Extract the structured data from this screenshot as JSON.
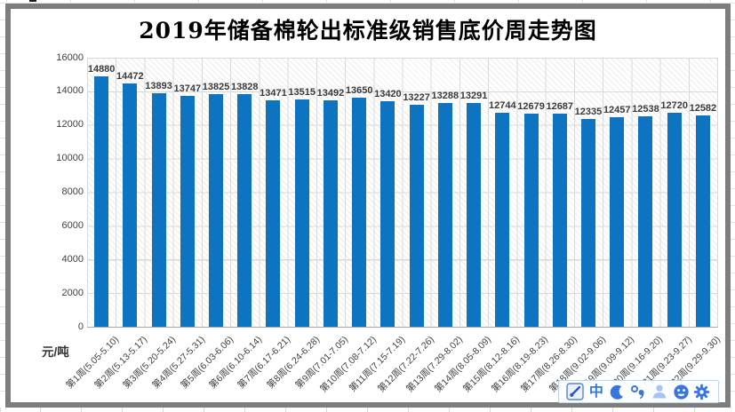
{
  "chart_data": {
    "type": "bar",
    "title": "2019年储备棉轮出标准级销售底价周走势图",
    "unit_label": "元/吨",
    "categories": [
      "第1周(5.05-5.10)",
      "第2周(5.13-5.17)",
      "第3周(5.20-5.24)",
      "第4周(5.27-5.31)",
      "第5周(6.03-6.06)",
      "第6周(6.10-6.14)",
      "第7周(6.17-6.21)",
      "第8周(6.24-6.28)",
      "第9周(7.01-7.05)",
      "第10周(7.08-7.12)",
      "第11周(7.15-7.19)",
      "第12周(7.22-7.26)",
      "第13周(7.29-8.02)",
      "第14周(8.05-8.09)",
      "第15周(8.12-8.16)",
      "第16周(8.19-8.23)",
      "第17周(8.26-8.30)",
      "第18周(9.02-9.06)",
      "第19周(9.09-9.12)",
      "第20周(9.16-9.20)",
      "第21周(9.23-9.27)",
      "第22周(9.29-9.30)"
    ],
    "values": [
      14880,
      14472,
      13893,
      13747,
      13825,
      13828,
      13471,
      13515,
      13492,
      13650,
      13420,
      13227,
      13288,
      13291,
      12744,
      12679,
      12687,
      12335,
      12457,
      12538,
      12720,
      12582
    ],
    "ylim": [
      0,
      16000
    ],
    "ytick_step": 2000,
    "bar_color": "#0e74c2",
    "grid": true,
    "plot_background": "diagonal-hatch",
    "legend": "none",
    "xlabel_rotation_deg": 45,
    "data_labels": true
  },
  "ime_toolbar": {
    "chinese_mode_label": "中",
    "punctuation_label": "°,",
    "accent_color": "#3875e0",
    "person_color": "#a6c3f3",
    "icons": [
      "sogou-logo",
      "chinese-mode",
      "fullwidth-moon",
      "punctuation-mode",
      "account-person",
      "emoji-smiley",
      "settings-gear"
    ]
  }
}
